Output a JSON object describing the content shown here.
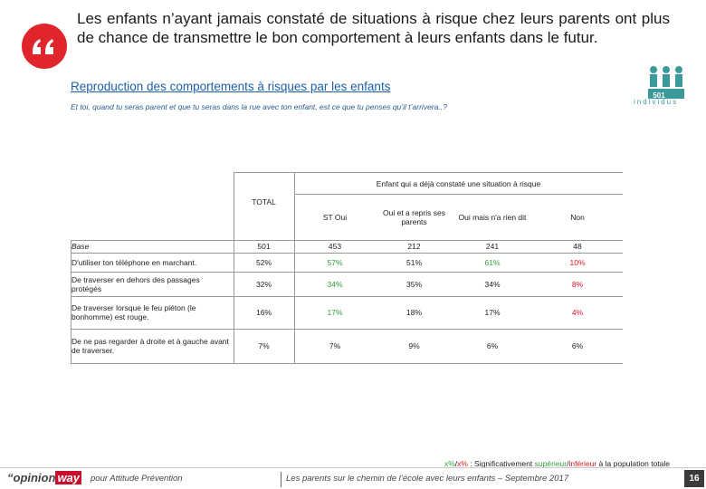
{
  "header": {
    "title": "Les enfants n’ayant jamais constaté de situations à risque chez leurs parents ont plus de chance de transmettre le bon comportement à leurs enfants dans le futur.",
    "subtitle": "Reproduction des comportements à risques par les enfants",
    "question": "Et toi, quand tu seras parent et que tu seras dans la rue avec ton enfant, est ce que tu penses qu’il t’arrivera..?",
    "badge": {
      "count": "501",
      "label": "individus"
    }
  },
  "table": {
    "group_header": "Enfant qui a déjà constaté une situation à risque",
    "columns": [
      "TOTAL",
      "ST Oui",
      "Oui et a repris ses parents",
      "Oui mais n'a rien dit",
      "Non"
    ],
    "rows": [
      {
        "label": "Base",
        "cells": [
          "501",
          "453",
          "212",
          "241",
          "48"
        ],
        "colors": [
          "#222222",
          "#222222",
          "#222222",
          "#222222",
          "#222222"
        ]
      },
      {
        "label": "D'utiliser ton téléphone en marchant.",
        "cells": [
          "52%",
          "57%",
          "51%",
          "61%",
          "10%"
        ],
        "colors": [
          "#222222",
          "#2e9e3a",
          "#222222",
          "#2e9e3a",
          "#e0161f"
        ]
      },
      {
        "label": "De traverser en dehors des passages protégés",
        "cells": [
          "32%",
          "34%",
          "35%",
          "34%",
          "8%"
        ],
        "colors": [
          "#222222",
          "#2e9e3a",
          "#222222",
          "#222222",
          "#e0161f"
        ]
      },
      {
        "label": "De traverser lorsque le feu piéton (le bonhomme) est rouge.",
        "cells": [
          "16%",
          "17%",
          "18%",
          "17%",
          "4%"
        ],
        "colors": [
          "#222222",
          "#2e9e3a",
          "#222222",
          "#222222",
          "#e0161f"
        ]
      },
      {
        "label": "De ne pas regarder à droite et à gauche avant de traverser.",
        "cells": [
          "7%",
          "7%",
          "9%",
          "6%",
          "6%"
        ],
        "colors": [
          "#222222",
          "#222222",
          "#222222",
          "#222222",
          "#222222"
        ]
      }
    ]
  },
  "legend": [
    {
      "text": "x%",
      "color": "#2e9e3a"
    },
    {
      "text": "/",
      "color": "#222222"
    },
    {
      "text": "x%",
      "color": "#e0161f"
    },
    {
      "text": " : Significativement ",
      "color": "#222222"
    },
    {
      "text": "supérieur",
      "color": "#2e9e3a"
    },
    {
      "text": "/",
      "color": "#222222"
    },
    {
      "text": "inférieur",
      "color": "#e0161f"
    },
    {
      "text": " à la population totale",
      "color": "#222222"
    }
  ],
  "footer": {
    "logo": [
      "“opinion",
      "way"
    ],
    "client": "pour Attitude Prévention",
    "source": "Les parents sur le chemin de l’école avec leurs enfants – Septembre 2017",
    "page": "16"
  }
}
